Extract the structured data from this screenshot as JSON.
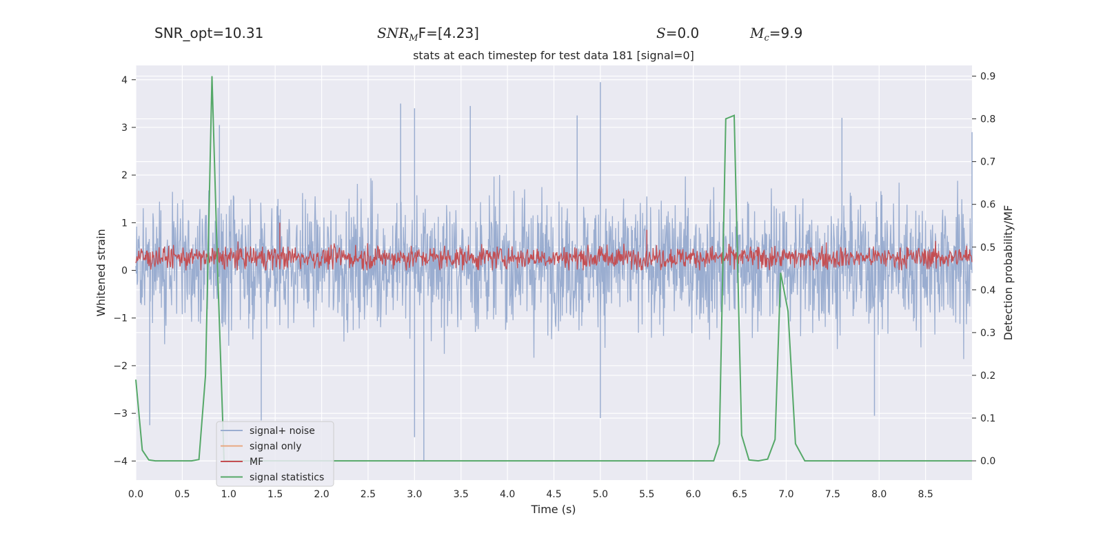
{
  "stats": {
    "snr_opt": "SNR_opt=10.31",
    "snr_mf_label": "SNR",
    "snr_mf_sub": "M",
    "snr_mf_rest": "F=[4.23]",
    "s_label": "S",
    "s_value": "=0.0",
    "mc_label": "M",
    "mc_sub": "c",
    "mc_value": "=9.9"
  },
  "colors": {
    "plot_bg": "#eaeaf2",
    "grid": "#ffffff",
    "signal_noise": "#9aadd0",
    "signal_only": "#e8a882",
    "mf": "#c44e52",
    "signal_statistics": "#55a868"
  },
  "chart_data": {
    "type": "line",
    "title": "stats at each timestep for test data 181 [signal=0]",
    "xlabel": "Time (s)",
    "ylabel": "Whitened strain",
    "ylabel_right": "Detection probability/MF",
    "xlim": [
      0.0,
      9.0
    ],
    "ylim": [
      -4.4,
      4.3
    ],
    "ylim_right": [
      -0.045,
      0.925
    ],
    "x_ticks": [
      0.0,
      0.5,
      1.0,
      1.5,
      2.0,
      2.5,
      3.0,
      3.5,
      4.0,
      4.5,
      5.0,
      5.5,
      6.0,
      6.5,
      7.0,
      7.5,
      8.0,
      8.5
    ],
    "x_tick_labels": [
      "0.0",
      "0.5",
      "1.0",
      "1.5",
      "2.0",
      "2.5",
      "3.0",
      "3.5",
      "4.0",
      "4.5",
      "5.0",
      "5.5",
      "6.0",
      "6.5",
      "7.0",
      "7.5",
      "8.0",
      "8.5"
    ],
    "y_ticks": [
      4,
      3,
      2,
      1,
      0,
      -1,
      -2,
      -3,
      -4
    ],
    "y_tick_labels": [
      "4",
      "3",
      "2",
      "1",
      "0",
      "−1",
      "−2",
      "−3",
      "−4"
    ],
    "y_right_ticks": [
      0.9,
      0.8,
      0.7,
      0.6,
      0.5,
      0.4,
      0.3,
      0.2,
      0.1,
      0.0
    ],
    "y_right_tick_labels": [
      "0.9",
      "0.8",
      "0.7",
      "0.6",
      "0.5",
      "0.4",
      "0.3",
      "0.2",
      "0.1",
      "0.0"
    ],
    "legend": {
      "placement": "lower-left",
      "entries": [
        "signal+ noise",
        "signal only",
        "MF",
        "signal statistics"
      ]
    },
    "series": [
      {
        "name": "signal+ noise",
        "axis": "left",
        "style": "dense noise band",
        "band_typical": [
          -1.8,
          2.2
        ],
        "notable_peaks": [
          {
            "x": 2.85,
            "y": 3.5
          },
          {
            "x": 3.0,
            "y": 3.4
          },
          {
            "x": 3.6,
            "y": 3.45
          },
          {
            "x": 5.0,
            "y": 3.95
          },
          {
            "x": 4.75,
            "y": 3.25
          },
          {
            "x": 0.9,
            "y": 3.05
          },
          {
            "x": 7.6,
            "y": 3.2
          },
          {
            "x": 9.0,
            "y": 2.9
          }
        ],
        "notable_troughs": [
          {
            "x": 3.1,
            "y": -4.0
          },
          {
            "x": 0.15,
            "y": -3.25
          },
          {
            "x": 3.0,
            "y": -3.5
          },
          {
            "x": 5.0,
            "y": -3.1
          },
          {
            "x": 1.35,
            "y": -3.15
          },
          {
            "x": 7.95,
            "y": -3.05
          }
        ]
      },
      {
        "name": "signal only",
        "axis": "left",
        "x": [
          0.0,
          9.0
        ],
        "y": [
          0.0,
          0.0
        ]
      },
      {
        "name": "MF",
        "axis": "left",
        "style": "dense band",
        "band_typical": [
          0.0,
          0.55
        ],
        "notable_peaks": [
          {
            "x": 1.55,
            "y": 1.0
          },
          {
            "x": 5.5,
            "y": 0.85
          }
        ]
      },
      {
        "name": "signal statistics",
        "axis": "right",
        "x": [
          0.0,
          0.07,
          0.14,
          0.21,
          0.3,
          0.45,
          0.6,
          0.68,
          0.75,
          0.82,
          0.88,
          0.95,
          6.22,
          6.28,
          6.35,
          6.44,
          6.52,
          6.6,
          6.7,
          6.8,
          6.88,
          6.94,
          7.02,
          7.1,
          7.2,
          9.0
        ],
        "y": [
          0.19,
          0.025,
          0.002,
          0.0,
          0.0,
          0.0,
          0.0,
          0.003,
          0.2,
          0.9,
          0.45,
          0.0,
          0.0,
          0.04,
          0.8,
          0.808,
          0.06,
          0.002,
          0.0,
          0.004,
          0.05,
          0.44,
          0.35,
          0.04,
          0.0,
          0.0
        ]
      }
    ]
  }
}
